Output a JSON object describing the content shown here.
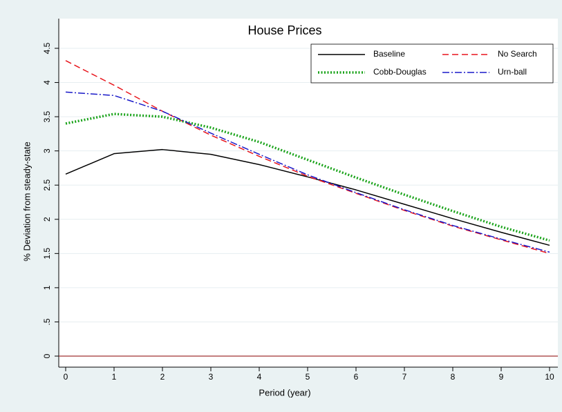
{
  "chart_data": {
    "type": "line",
    "title": "House Prices",
    "x_label": "Period (year)",
    "y_label": "% Deviation from steady-state",
    "x": [
      0,
      1,
      2,
      3,
      4,
      5,
      6,
      7,
      8,
      9,
      10
    ],
    "xlim": [
      0,
      10
    ],
    "xticks": [
      0,
      1,
      2,
      3,
      4,
      5,
      6,
      7,
      8,
      9,
      10
    ],
    "ylim": [
      0,
      4.5
    ],
    "yticks": [
      0,
      {
        "value": 0.5,
        "label": ".5"
      },
      1,
      1.5,
      2,
      2.5,
      3,
      3.5,
      4,
      4.5
    ],
    "grid": true,
    "legend_position": "top-right",
    "reference_line": {
      "y": 0,
      "color": "#a03030"
    },
    "series": [
      {
        "name": "Baseline",
        "color": "#000000",
        "style": "solid",
        "values": [
          2.66,
          2.96,
          3.02,
          2.95,
          2.8,
          2.62,
          2.43,
          2.22,
          2.01,
          1.81,
          1.62
        ]
      },
      {
        "name": "No Search",
        "color": "#e8141b",
        "style": "dash",
        "values": [
          4.32,
          3.96,
          3.58,
          3.23,
          2.92,
          2.63,
          2.38,
          2.13,
          1.9,
          1.7,
          1.5
        ]
      },
      {
        "name": "Cobb-Douglas",
        "color": "#1aa31a",
        "style": "dot",
        "values": [
          3.4,
          3.54,
          3.5,
          3.34,
          3.13,
          2.87,
          2.61,
          2.36,
          2.12,
          1.89,
          1.69
        ]
      },
      {
        "name": "Urn-ball",
        "color": "#1818c8",
        "style": "dashdot",
        "values": [
          3.86,
          3.81,
          3.58,
          3.26,
          2.95,
          2.65,
          2.39,
          2.14,
          1.91,
          1.71,
          1.52
        ]
      }
    ]
  }
}
